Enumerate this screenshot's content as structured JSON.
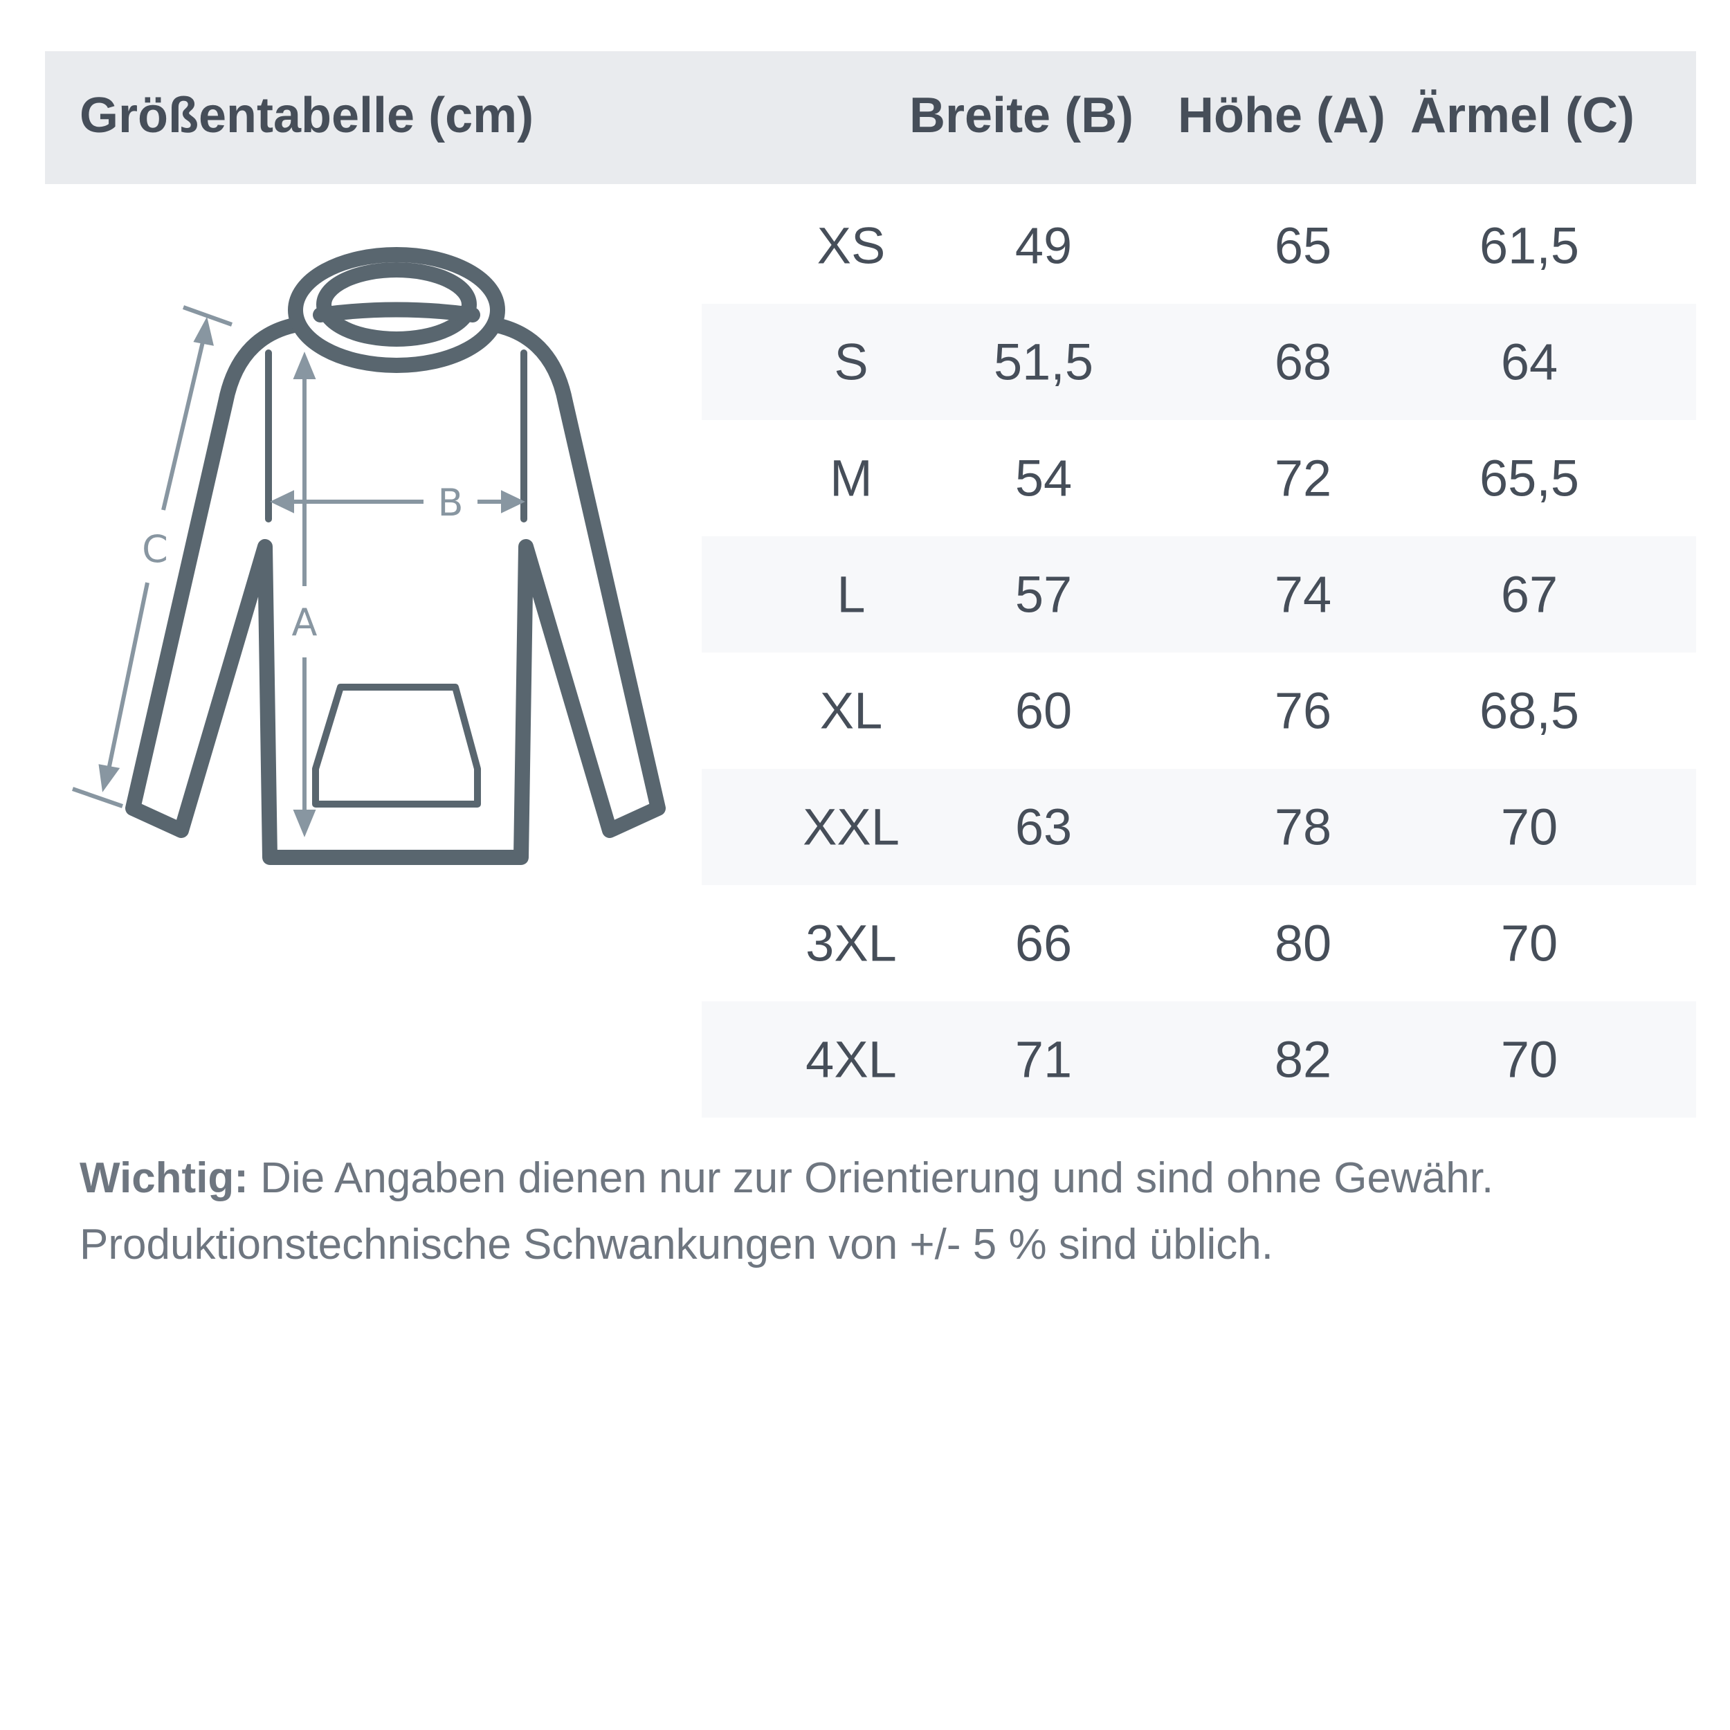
{
  "header": {
    "title": "Größentabelle (cm)",
    "columns": [
      "Breite (B)",
      "Höhe (A)",
      "Ärmel (C)"
    ]
  },
  "diagram": {
    "labels": {
      "a": "A",
      "b": "B",
      "c": "C"
    },
    "colors": {
      "outline": "#59666f",
      "arrows": "#8896a1"
    }
  },
  "rows": [
    {
      "size": "XS",
      "breite": "49",
      "hoehe": "65",
      "aermel": "61,5"
    },
    {
      "size": "S",
      "breite": "51,5",
      "hoehe": "68",
      "aermel": "64"
    },
    {
      "size": "M",
      "breite": "54",
      "hoehe": "72",
      "aermel": "65,5"
    },
    {
      "size": "L",
      "breite": "57",
      "hoehe": "74",
      "aermel": "67"
    },
    {
      "size": "XL",
      "breite": "60",
      "hoehe": "76",
      "aermel": "68,5"
    },
    {
      "size": "XXL",
      "breite": "63",
      "hoehe": "78",
      "aermel": "70"
    },
    {
      "size": "3XL",
      "breite": "66",
      "hoehe": "80",
      "aermel": "70"
    },
    {
      "size": "4XL",
      "breite": "71",
      "hoehe": "82",
      "aermel": "70"
    }
  ],
  "note": {
    "label": "Wichtig:",
    "line1": " Die Angaben dienen nur zur Orientierung und sind ohne Gewähr.",
    "line2": "Produktionstechnische Schwankungen von +/- 5 % sind üblich."
  }
}
